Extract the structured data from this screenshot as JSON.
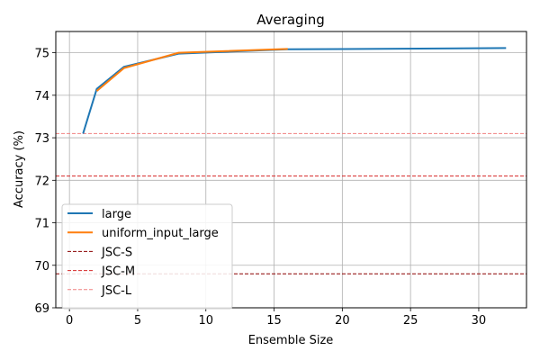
{
  "chart_data": {
    "type": "line",
    "title": "Averaging",
    "xlabel": "Ensemble Size",
    "ylabel": "Accuracy (%)",
    "xlim": [
      -1,
      33.5
    ],
    "ylim": [
      69,
      75.5
    ],
    "xticks": [
      0,
      5,
      10,
      15,
      20,
      25,
      30
    ],
    "yticks": [
      69,
      70,
      71,
      72,
      73,
      74,
      75
    ],
    "grid": true,
    "legend_position": "lower-left",
    "series": [
      {
        "name": "large",
        "kind": "line",
        "color": "#1f77b4",
        "x": [
          1,
          2,
          4,
          8,
          16,
          32
        ],
        "y": [
          73.1,
          74.15,
          74.67,
          74.98,
          75.08,
          75.11
        ]
      },
      {
        "name": "uniform_input_large",
        "kind": "line",
        "color": "#ff7f0e",
        "x": [
          2,
          4,
          8,
          16
        ],
        "y": [
          74.1,
          74.64,
          75.0,
          75.09
        ]
      }
    ],
    "reference_lines": [
      {
        "name": "JSC-S",
        "y": 69.8,
        "color": "#8b0000",
        "style": "dashed"
      },
      {
        "name": "JSC-M",
        "y": 72.1,
        "color": "#d62728",
        "style": "dashed"
      },
      {
        "name": "JSC-L",
        "y": 73.1,
        "color": "#f08080",
        "style": "dashed"
      }
    ]
  }
}
